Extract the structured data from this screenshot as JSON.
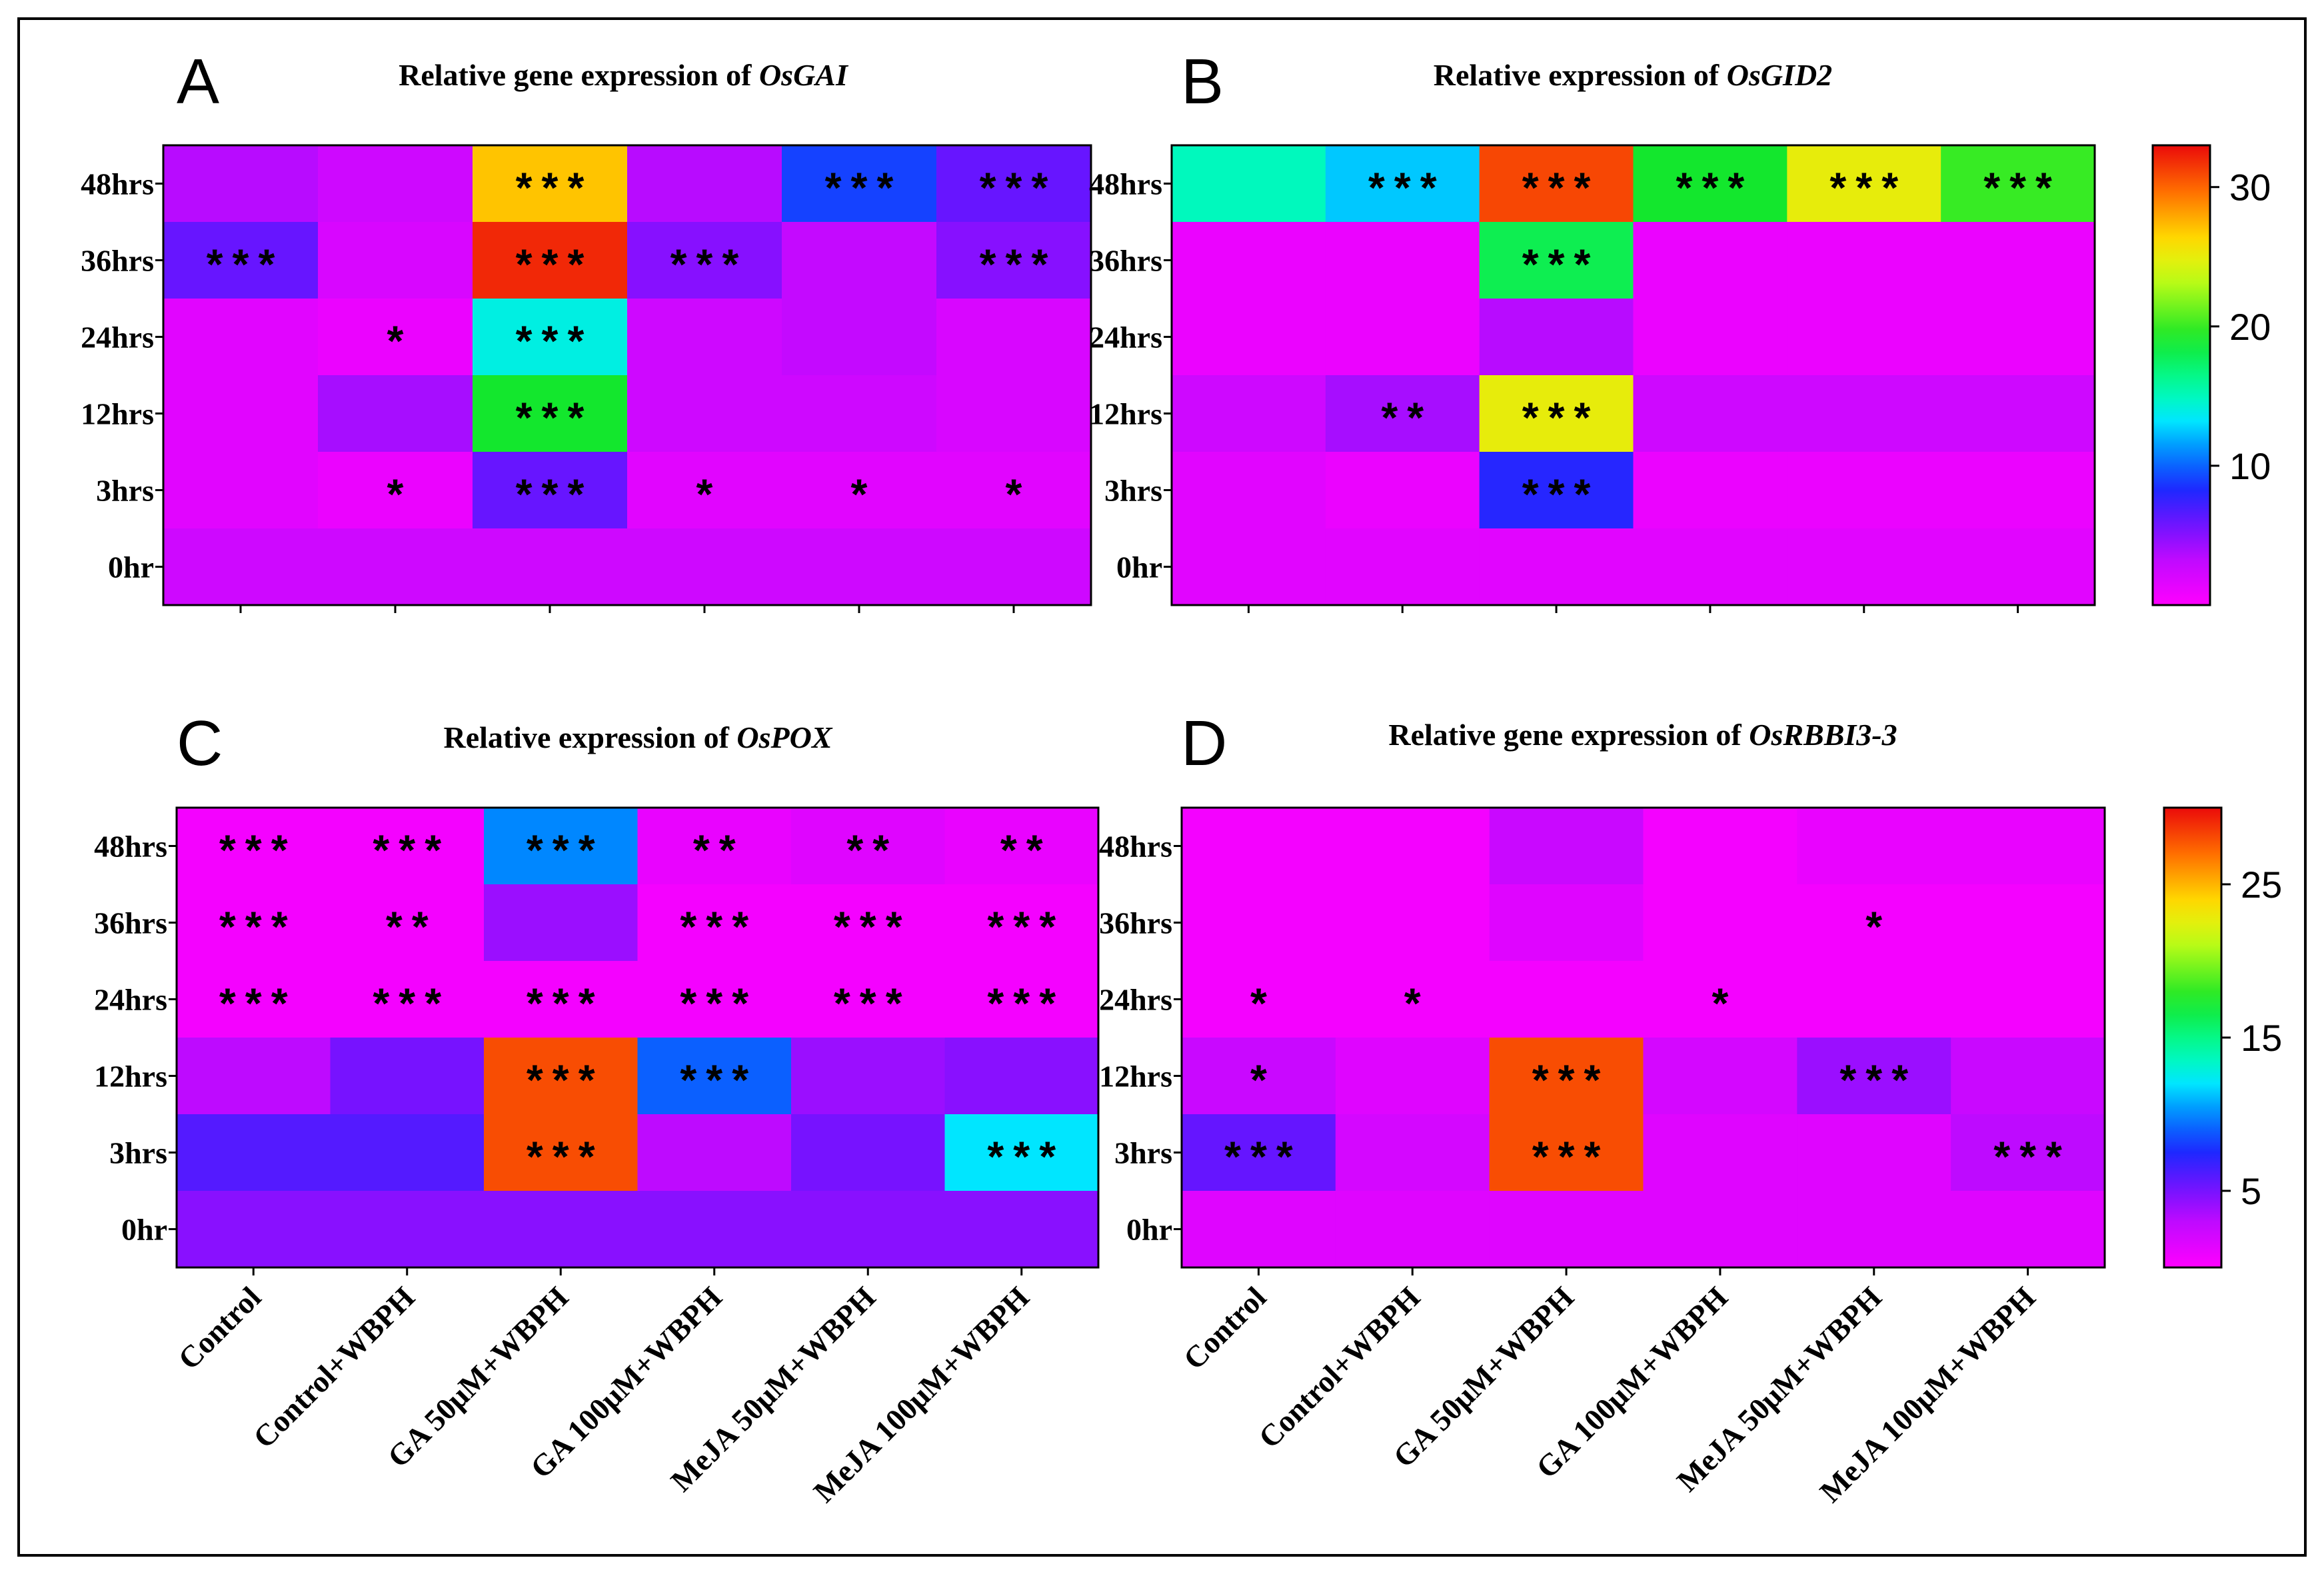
{
  "chart_data": [
    {
      "type": "heatmap",
      "panel": "A",
      "title_prefix": "Relative gene expression of ",
      "gene": "OsGAI",
      "rows": [
        "48hrs",
        "36hrs",
        "24hrs",
        "12hrs",
        "3hrs",
        "0hr"
      ],
      "columns": [
        "Control",
        "Control+WBPH",
        "GA 50μM+WBPH",
        "GA 100μM+WBPH",
        "MeJA 50μM+WBPH",
        "MeJA 100μM+WBPH"
      ],
      "show_column_labels": false,
      "values": [
        [
          3.5,
          2.5,
          27,
          3.5,
          9,
          6
        ],
        [
          6,
          2,
          32,
          5,
          3,
          5
        ],
        [
          1.5,
          1,
          14,
          2.5,
          3,
          2
        ],
        [
          1.5,
          4,
          19,
          2.5,
          2.5,
          2
        ],
        [
          1.5,
          1,
          6,
          1.5,
          1.5,
          1.5
        ],
        [
          2.5,
          2.5,
          2.5,
          2.5,
          2.5,
          2.5
        ]
      ],
      "significance": [
        [
          "",
          "",
          "***",
          "",
          "***",
          "***"
        ],
        [
          "***",
          "",
          "***",
          "***",
          "",
          "***"
        ],
        [
          "",
          "*",
          "***",
          "",
          "",
          ""
        ],
        [
          "",
          "",
          "***",
          "",
          "",
          ""
        ],
        [
          "",
          "*",
          "***",
          "*",
          "*",
          "*"
        ],
        [
          "",
          "",
          "",
          "",
          "",
          ""
        ]
      ],
      "color_scale": {
        "min": 0,
        "max": 33
      }
    },
    {
      "type": "heatmap",
      "panel": "B",
      "title_prefix": "Relative expression of ",
      "gene": "OsGID2",
      "rows": [
        "48hrs",
        "36hrs",
        "24hrs",
        "12hrs",
        "3hrs",
        "0hr"
      ],
      "columns": [
        "Control",
        "Control+WBPH",
        "GA 50μM+WBPH",
        "GA 100μM+WBPH",
        "MeJA 50μM+WBPH",
        "MeJA 100μM+WBPH"
      ],
      "show_column_labels": false,
      "values": [
        [
          15,
          12.5,
          31,
          19,
          25,
          20
        ],
        [
          1,
          1,
          18,
          1,
          1,
          1
        ],
        [
          1,
          1,
          3.5,
          1,
          1,
          1
        ],
        [
          2.5,
          4,
          25,
          2.5,
          2.5,
          2.5
        ],
        [
          1.5,
          1,
          8,
          1,
          1,
          1
        ],
        [
          1.5,
          1.5,
          1.5,
          1.5,
          1.5,
          1.5
        ]
      ],
      "significance": [
        [
          "",
          "***",
          "***",
          "***",
          "***",
          "***"
        ],
        [
          "",
          "",
          "***",
          "",
          "",
          ""
        ],
        [
          "",
          "",
          "",
          "",
          "",
          ""
        ],
        [
          "",
          "**",
          "***",
          "",
          "",
          ""
        ],
        [
          "",
          "",
          "***",
          "",
          "",
          ""
        ],
        [
          "",
          "",
          "",
          "",
          "",
          ""
        ]
      ],
      "color_scale": {
        "min": 0,
        "max": 33
      },
      "colorbar_ticks": [
        "30",
        "20",
        "10"
      ],
      "colorbar_tick_values": [
        30,
        20,
        10
      ]
    },
    {
      "type": "heatmap",
      "panel": "C",
      "title_prefix": "Relative expression of ",
      "gene": "OsPOX",
      "rows": [
        "48hrs",
        "36hrs",
        "24hrs",
        "12hrs",
        "3hrs",
        "0hr"
      ],
      "columns": [
        "Control",
        "Control+WBPH",
        "GA 50μM+WBPH",
        "GA 100μM+WBPH",
        "MeJA 50μM+WBPH",
        "MeJA 100μM+WBPH"
      ],
      "show_column_labels": true,
      "values": [
        [
          0.5,
          0.5,
          10,
          1,
          1.5,
          1
        ],
        [
          0.5,
          0.5,
          4,
          0.5,
          0.5,
          0.5
        ],
        [
          0.5,
          0.5,
          0.5,
          0.5,
          0.5,
          0.5
        ],
        [
          3,
          5,
          28,
          9,
          4,
          4.5
        ],
        [
          6,
          6,
          28,
          3,
          5,
          12
        ],
        [
          4.5,
          4.5,
          4.5,
          4.5,
          4.5,
          4.5
        ]
      ],
      "significance": [
        [
          "***",
          "***",
          "***",
          "**",
          "**",
          "**"
        ],
        [
          "***",
          "**",
          "",
          "***",
          "***",
          "***"
        ],
        [
          "***",
          "***",
          "***",
          "***",
          "***",
          "***"
        ],
        [
          "",
          "",
          "***",
          "***",
          "",
          ""
        ],
        [
          "",
          "",
          "***",
          "",
          "",
          "***"
        ],
        [
          "",
          "",
          "",
          "",
          "",
          ""
        ]
      ],
      "color_scale": {
        "min": 0,
        "max": 30
      }
    },
    {
      "type": "heatmap",
      "panel": "D",
      "title_prefix": "Relative gene expression of ",
      "gene": "OsRBBI3-3",
      "rows": [
        "48hrs",
        "36hrs",
        "24hrs",
        "12hrs",
        "3hrs",
        "0hr"
      ],
      "columns": [
        "Control",
        "Control+WBPH",
        "GA 50μM+WBPH",
        "GA 100μM+WBPH",
        "MeJA 50μM+WBPH",
        "MeJA 100μM+WBPH"
      ],
      "show_column_labels": true,
      "values": [
        [
          0.5,
          0.5,
          2.5,
          0.5,
          1,
          1
        ],
        [
          0.5,
          0.5,
          1.5,
          0.5,
          0.5,
          0.5
        ],
        [
          0.5,
          0.5,
          0.5,
          0.5,
          0.5,
          0.5
        ],
        [
          2.5,
          1.5,
          28,
          2,
          4,
          2.5
        ],
        [
          5.5,
          2,
          28,
          1.5,
          1.5,
          3
        ],
        [
          1.5,
          1.5,
          1.5,
          1.5,
          1.5,
          1.5
        ]
      ],
      "significance": [
        [
          "",
          "",
          "",
          "",
          "",
          ""
        ],
        [
          "",
          "",
          "",
          "",
          "*",
          ""
        ],
        [
          "*",
          "*",
          "",
          "*",
          "",
          ""
        ],
        [
          "*",
          "",
          "***",
          "",
          "***",
          ""
        ],
        [
          "***",
          "",
          "***",
          "",
          "",
          "***"
        ],
        [
          "",
          "",
          "",
          "",
          "",
          ""
        ]
      ],
      "color_scale": {
        "min": 0,
        "max": 30
      },
      "colorbar_ticks": [
        "25",
        "15",
        "5"
      ],
      "colorbar_tick_values": [
        25,
        15,
        5
      ]
    }
  ]
}
